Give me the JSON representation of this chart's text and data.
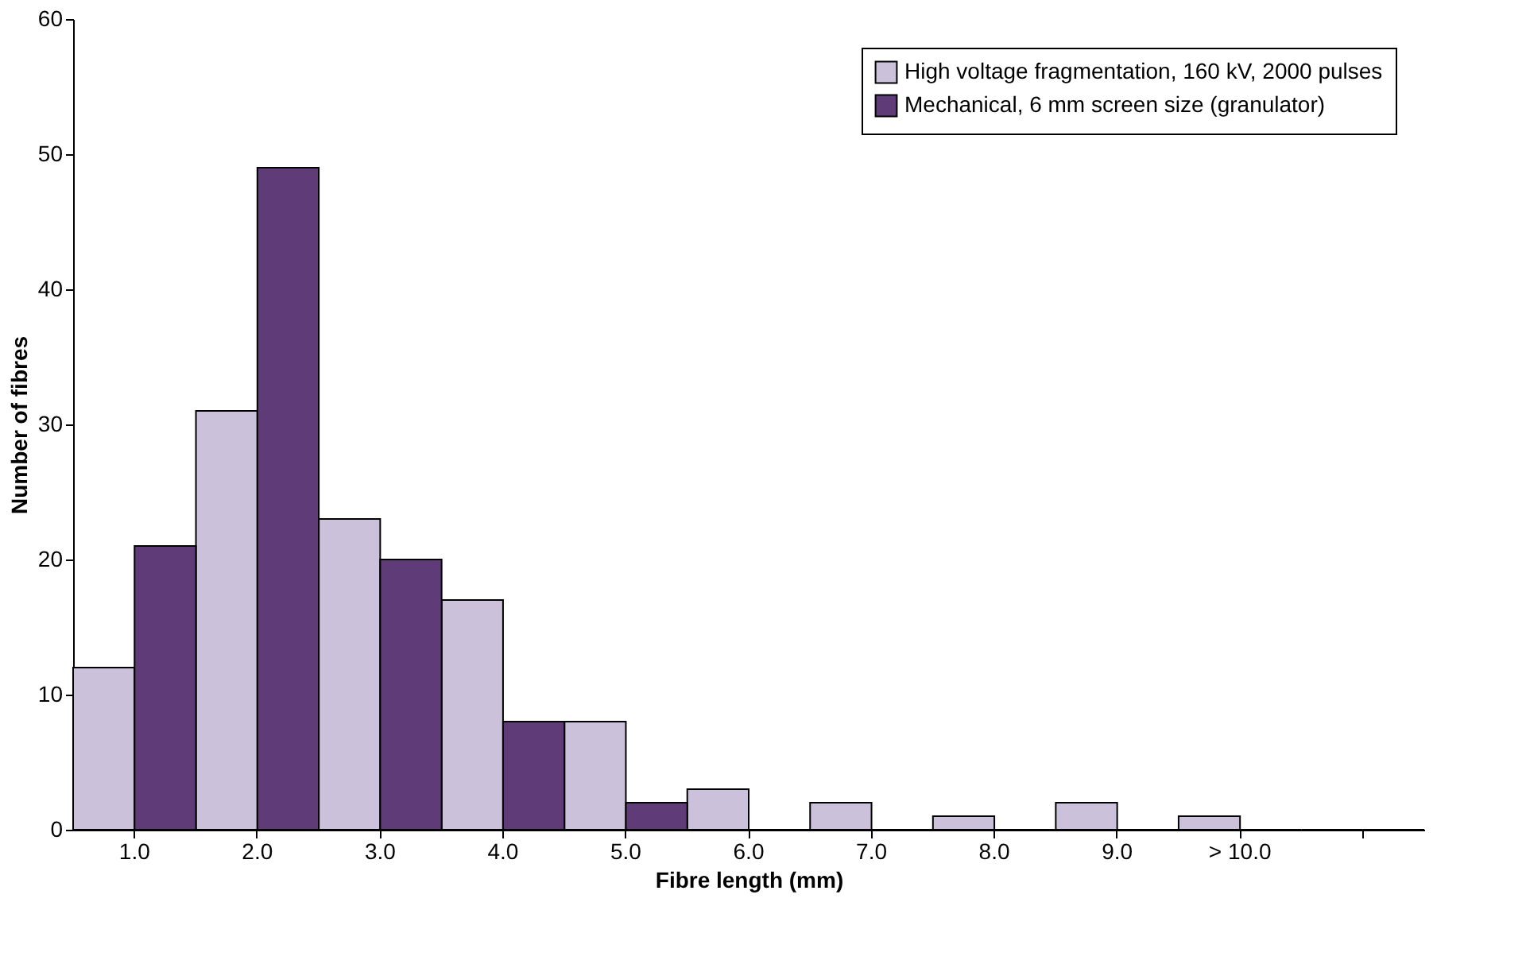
{
  "chart_data": {
    "type": "bar",
    "xlabel": "Fibre length (mm)",
    "ylabel": "Number of fibres",
    "categories": [
      "1.0",
      "2.0",
      "3.0",
      "4.0",
      "5.0",
      "6.0",
      "7.0",
      "8.0",
      "9.0",
      "> 10.0",
      null
    ],
    "series": [
      {
        "name": "High voltage fragmentation, 160 kV, 2000 pulses",
        "color": "#ccc1da",
        "values": [
          12,
          31,
          23,
          17,
          8,
          3,
          2,
          1,
          2,
          1,
          0
        ]
      },
      {
        "name": "Mechanical, 6 mm screen size (granulator)",
        "color": "#5f3b78",
        "values": [
          21,
          49,
          20,
          8,
          2,
          0,
          0,
          0,
          0,
          0,
          0
        ]
      }
    ],
    "ylim": [
      0,
      60
    ],
    "yticks": [
      0,
      10,
      20,
      30,
      40,
      50,
      60
    ],
    "grid": false,
    "legend": "top right"
  }
}
